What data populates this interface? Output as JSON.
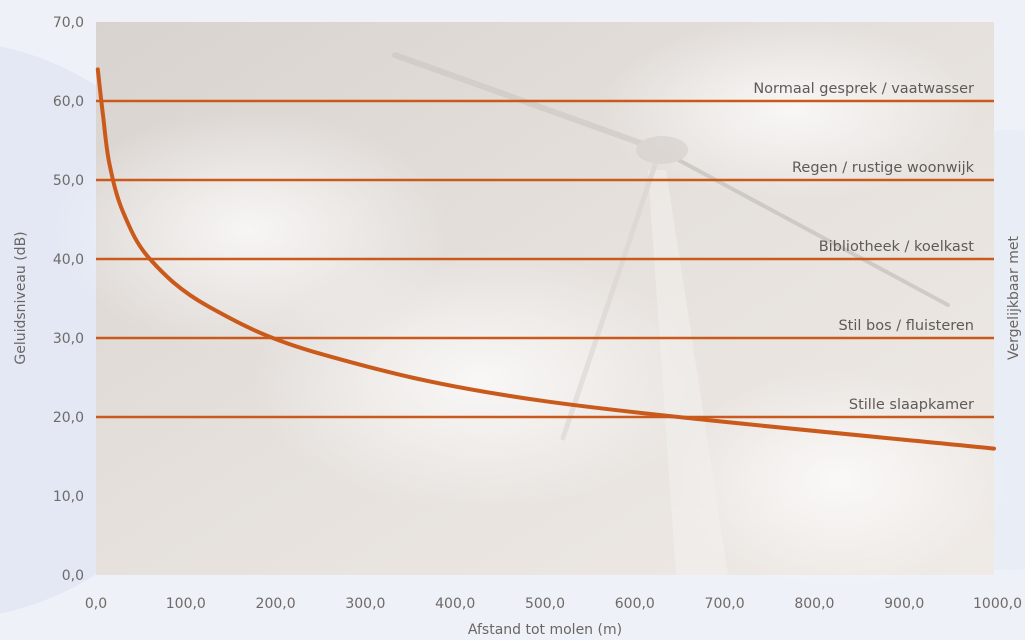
{
  "chart_data": {
    "type": "line",
    "xlabel": "Afstand tot molen (m)",
    "ylabel": "Geluidsniveau (dB)",
    "y2label": "Vergelijkbaar met",
    "xlim": [
      0,
      1000
    ],
    "ylim": [
      0,
      70
    ],
    "xticks": [
      "0,0",
      "100,0",
      "200,0",
      "300,0",
      "400,0",
      "500,0",
      "600,0",
      "700,0",
      "800,0",
      "900,0",
      "1000,0"
    ],
    "yticks": [
      "0,0",
      "10,0",
      "20,0",
      "30,0",
      "40,0",
      "50,0",
      "60,0",
      "70,0"
    ],
    "series": [
      {
        "x": [
          2,
          8,
          15,
          30,
          60,
          125,
          250,
          500,
          1000
        ],
        "y": [
          64,
          58,
          52,
          46,
          40,
          34,
          28,
          22,
          16
        ],
        "color": "#c95a1c"
      }
    ],
    "reference_lines": [
      {
        "label": "Normaal gesprek / vaatwasser",
        "y": 60
      },
      {
        "label": "Regen / rustige woonwijk",
        "y": 50
      },
      {
        "label": "Bibliotheek / koelkast",
        "y": 40
      },
      {
        "label": "Stil bos / fluisteren",
        "y": 30
      },
      {
        "label": "Stille slaapkamer",
        "y": 20
      }
    ],
    "reference_color": "#c95a1c",
    "grid": false
  }
}
